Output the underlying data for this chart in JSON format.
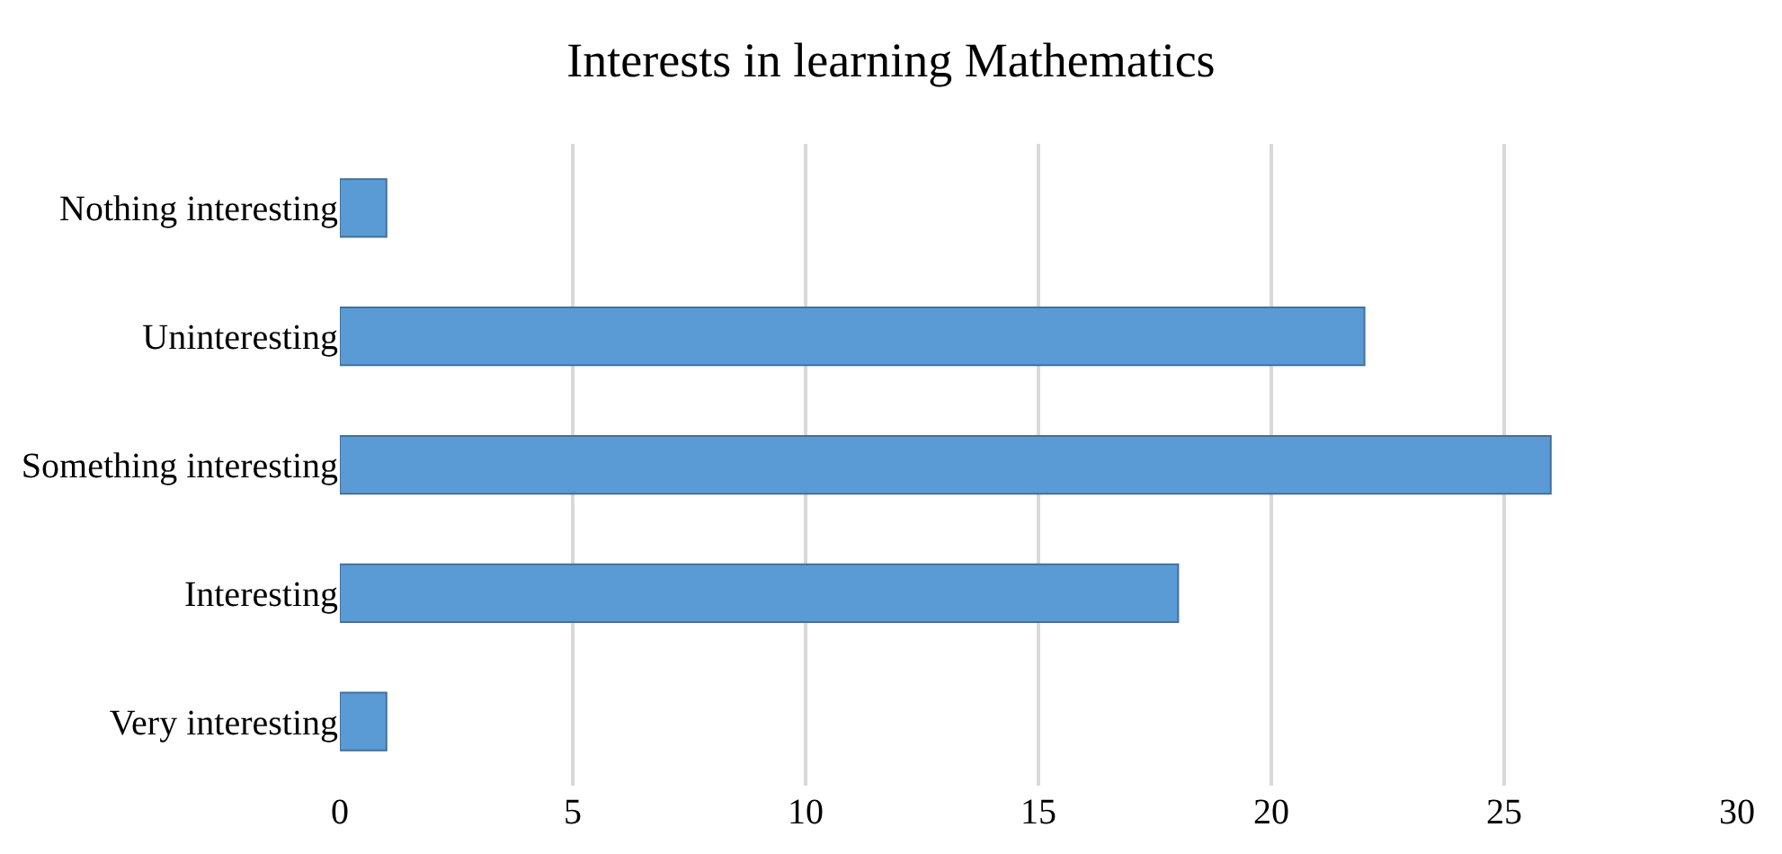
{
  "chart_data": {
    "type": "bar",
    "orientation": "horizontal",
    "title": "Interests in learning Mathematics",
    "categories": [
      "Nothing interesting",
      "Uninteresting",
      "Something interesting",
      "Interesting",
      "Very interesting"
    ],
    "values": [
      1,
      22,
      26,
      18,
      1
    ],
    "color": "#5b9bd5",
    "xlim": [
      0,
      30
    ],
    "xticks": [
      0,
      5,
      10,
      15,
      20,
      25,
      30
    ],
    "grid": "x"
  }
}
